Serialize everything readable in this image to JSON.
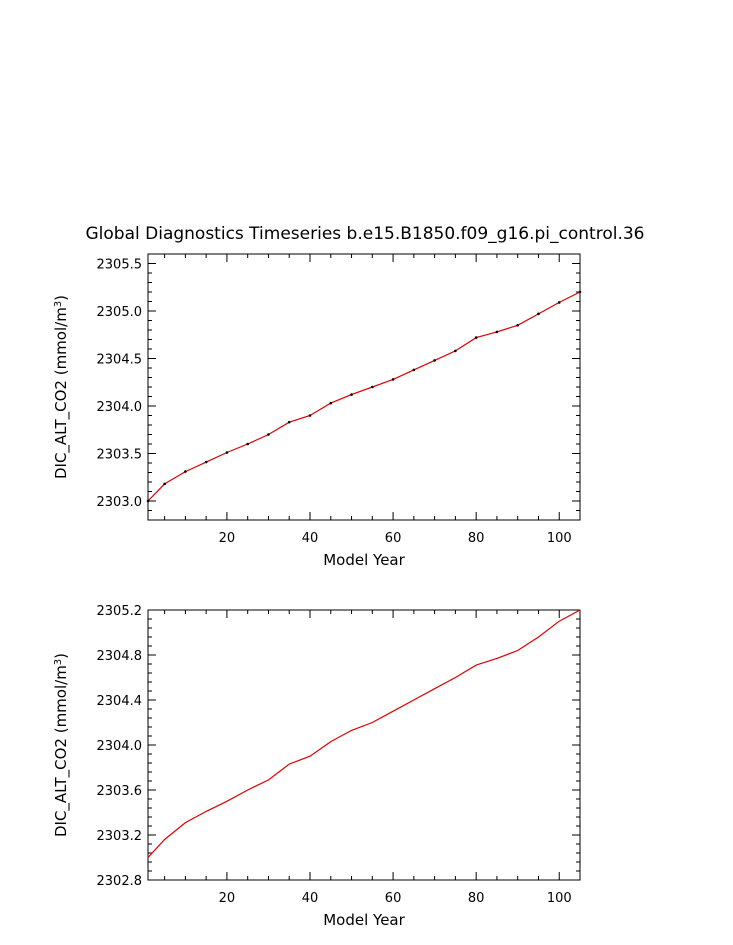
{
  "chart_data": [
    {
      "type": "line",
      "title": "Global Diagnostics Timeseries b.e15.B1850.f09_g16.pi_control.36",
      "xlabel": "Model Year",
      "ylabel_prefix": "DIC_ALT_CO2 (mmol/m",
      "ylabel_sup": "3",
      "ylabel_suffix": ")",
      "xlim": [
        1,
        105
      ],
      "ylim": [
        2302.8,
        2305.6
      ],
      "xticks": [
        20,
        40,
        60,
        80,
        100
      ],
      "xtick_labels": [
        "20",
        "40",
        "60",
        "80",
        "100"
      ],
      "yticks": [
        2303.0,
        2303.5,
        2304.0,
        2304.5,
        2305.0,
        2305.5
      ],
      "ytick_labels": [
        "2303.0",
        "2303.5",
        "2304.0",
        "2304.5",
        "2305.0",
        "2305.5"
      ],
      "grid": false,
      "series": [
        {
          "color": "#e00000",
          "marker_color": "#000000",
          "x": [
            1,
            5,
            10,
            15,
            20,
            25,
            30,
            35,
            40,
            45,
            50,
            55,
            60,
            65,
            70,
            75,
            80,
            85,
            90,
            95,
            100,
            105
          ],
          "y": [
            2303.0,
            2303.18,
            2303.31,
            2303.41,
            2303.51,
            2303.6,
            2303.7,
            2303.83,
            2303.9,
            2304.03,
            2304.12,
            2304.2,
            2304.28,
            2304.38,
            2304.48,
            2304.58,
            2304.72,
            2304.78,
            2304.85,
            2304.97,
            2305.09,
            2305.2
          ]
        }
      ]
    },
    {
      "type": "line",
      "xlabel": "Model Year",
      "ylabel_prefix": "DIC_ALT_CO2 (mmol/m",
      "ylabel_sup": "3",
      "ylabel_suffix": ")",
      "xlim": [
        1,
        105
      ],
      "ylim": [
        2302.8,
        2305.2
      ],
      "xticks": [
        20,
        40,
        60,
        80,
        100
      ],
      "xtick_labels": [
        "20",
        "40",
        "60",
        "80",
        "100"
      ],
      "yticks": [
        2302.8,
        2303.2,
        2303.6,
        2304.0,
        2304.4,
        2304.8,
        2305.2
      ],
      "ytick_labels": [
        "2302.8",
        "2303.2",
        "2303.6",
        "2304.0",
        "2304.4",
        "2304.8",
        "2305.2"
      ],
      "grid": false,
      "series": [
        {
          "color": "#e00000",
          "x": [
            1,
            5,
            10,
            15,
            20,
            25,
            30,
            35,
            40,
            45,
            50,
            55,
            60,
            65,
            70,
            75,
            80,
            85,
            90,
            95,
            100,
            105
          ],
          "y": [
            2303.0,
            2303.16,
            2303.31,
            2303.41,
            2303.5,
            2303.6,
            2303.69,
            2303.83,
            2303.9,
            2304.03,
            2304.13,
            2304.2,
            2304.3,
            2304.4,
            2304.5,
            2304.6,
            2304.71,
            2304.77,
            2304.84,
            2304.96,
            2305.1,
            2305.2
          ]
        }
      ]
    }
  ]
}
